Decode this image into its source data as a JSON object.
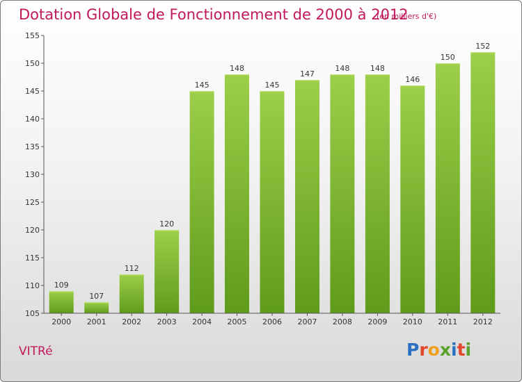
{
  "page": {
    "title": "Dotation Globale de Fonctionnement de 2000 à 2012",
    "subtitle": "(en milliers d'€)",
    "commune": "VITRé",
    "logo": {
      "text": "Proxiti",
      "letters": [
        {
          "ch": "P",
          "color": "#2b6fc2"
        },
        {
          "ch": "r",
          "color": "#e2462b"
        },
        {
          "ch": "o",
          "color": "#f0a01e"
        },
        {
          "ch": "x",
          "color": "#5aa22b"
        },
        {
          "ch": "i",
          "color": "#2b6fc2"
        },
        {
          "ch": "t",
          "color": "#e2462b"
        },
        {
          "ch": "i",
          "color": "#5aa22b"
        }
      ]
    }
  },
  "chart_data": {
    "type": "bar",
    "title": "Dotation Globale de Fonctionnement de 2000 à 2012",
    "subtitle": "(en milliers d'€)",
    "categories": [
      "2000",
      "2001",
      "2002",
      "2003",
      "2004",
      "2005",
      "2006",
      "2007",
      "2008",
      "2009",
      "2010",
      "2011",
      "2012"
    ],
    "values": [
      109,
      107,
      112,
      120,
      145,
      148,
      145,
      147,
      148,
      148,
      146,
      150,
      152
    ],
    "ylim": [
      105,
      155
    ],
    "yticks": [
      105,
      110,
      115,
      120,
      125,
      130,
      135,
      140,
      145,
      150,
      155
    ],
    "grid": false,
    "bar_color_top": "#9ccf4a",
    "bar_color_bottom": "#5f9b1a"
  }
}
